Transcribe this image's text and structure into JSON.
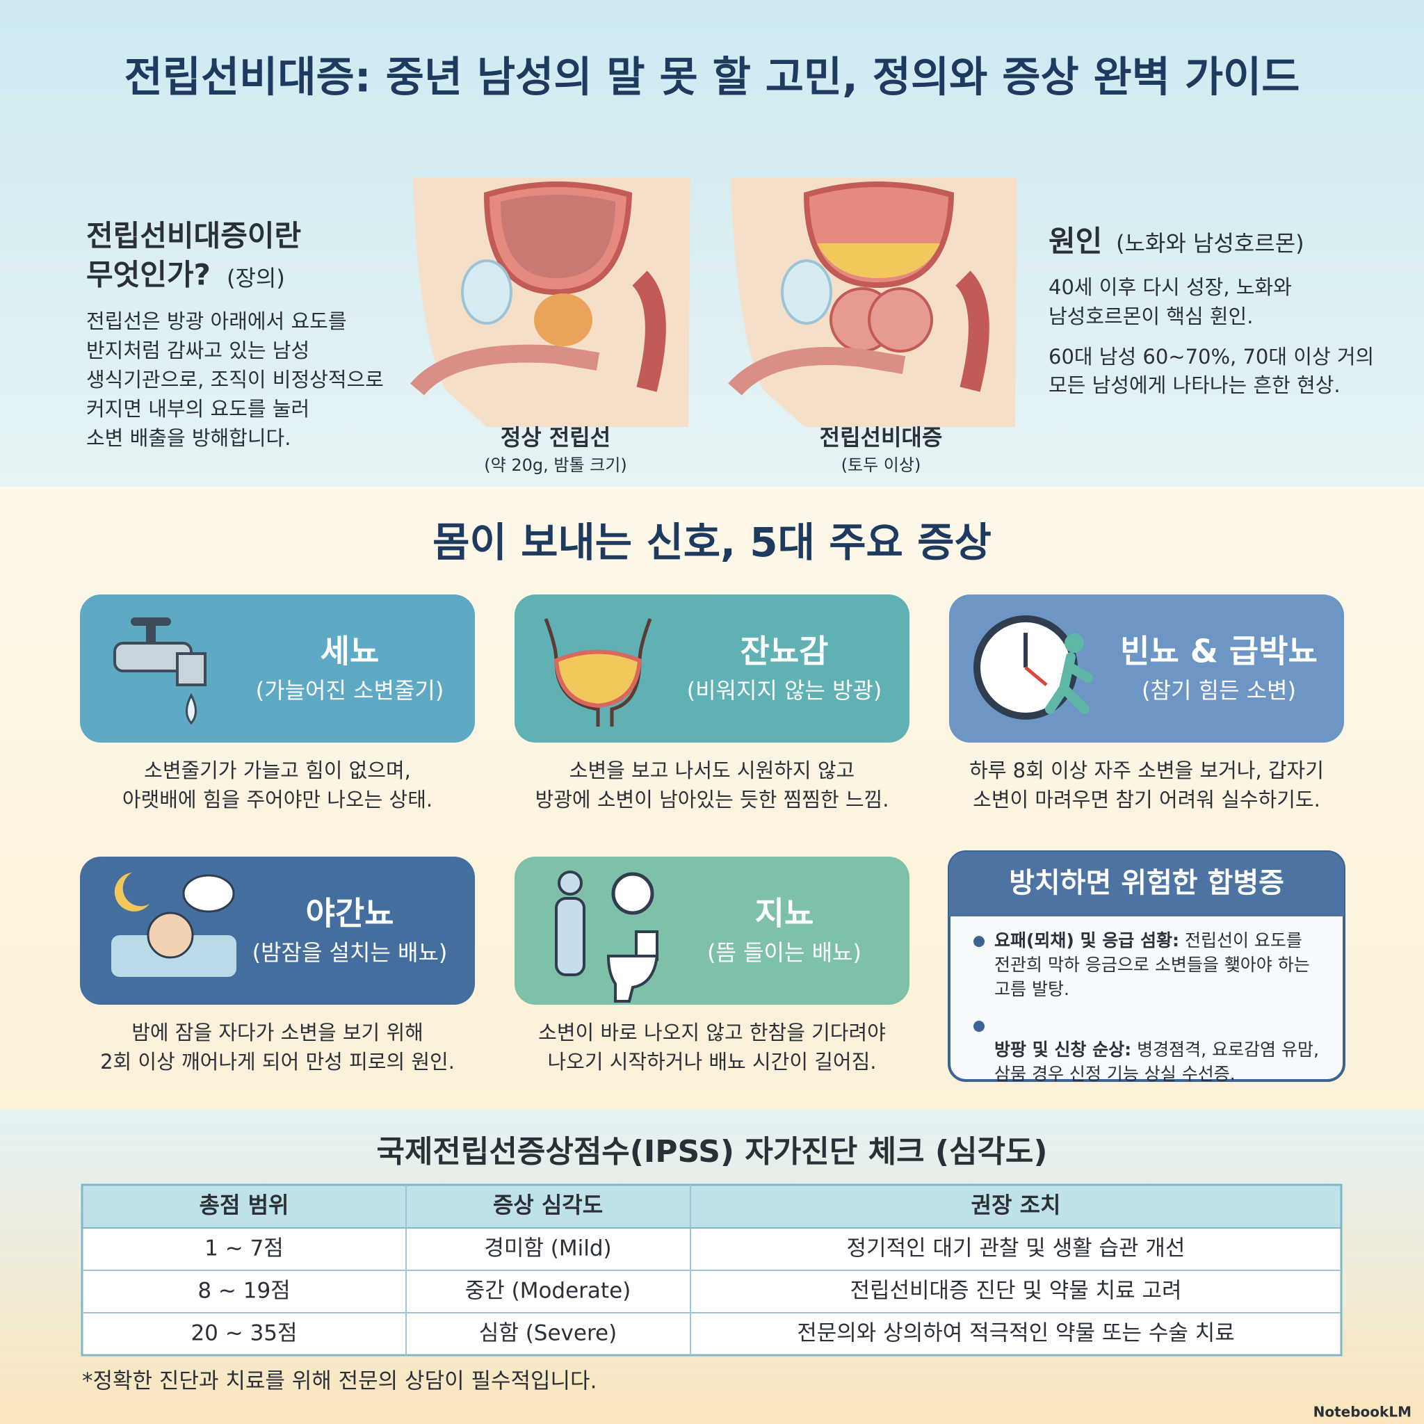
{
  "header": {
    "title": "전립선비대증: 중년 남성의 말 못 할 고민, 정의와 증상 완벽 가이드"
  },
  "definition": {
    "title_lines": [
      "전립선비대증이란",
      "무엇인가?"
    ],
    "tag": "(장의)",
    "body_lines": [
      "전립선은 방광 아래에서 요도를",
      "반지처럼 감싸고 있는 남성",
      "생식기관으로, 조직이 비정상적으로",
      "커지면 내부의 요도를 눌러",
      "소변 배출을 방해합니다."
    ]
  },
  "illustrations": [
    {
      "label": "정상 전립선",
      "sublabel": "(약 20g, 밤톨 크기)"
    },
    {
      "label": "전립선비대증",
      "sublabel": "(토두 이상)"
    }
  ],
  "cause": {
    "title": "원인",
    "subtitle": "(노화와 남성호르몬)",
    "paragraphs": [
      [
        "40세 이후 다시 성장, 노화와",
        "남성호르몬이 핵심 휜인."
      ],
      [
        "60대 남성 60~70%, 70대 이상 거의",
        "모든 남성에게 나타나는 흔한 현상."
      ]
    ]
  },
  "symptoms": {
    "title": "몸이 보내는 신호, 5대 주요 증상",
    "cards": [
      {
        "name": "세뇨",
        "subtitle": "(가늘어진 소변줄기)",
        "description": [
          "소변줄기가 가늘고 힘이 없으며,",
          "아랫배에 힘을 주어야만 나오는 상태."
        ]
      },
      {
        "name": "잔뇨감",
        "subtitle": "(비워지지 않는 방광)",
        "description": [
          "소변을 보고 나서도 시원하지 않고",
          "방광에 소변이 남아있는 듯한 찜찜한 느낌."
        ]
      },
      {
        "name": "빈뇨 & 급박뇨",
        "subtitle": "(참기 힘든 소변)",
        "description": [
          "하루 8회 이상 자주 소변을 보거나, 갑자기",
          "소변이 마려우면 참기 어려워 실수하기도."
        ]
      },
      {
        "name": "야간뇨",
        "subtitle": "(밤잠을 설치는 배뇨)",
        "description": [
          "밤에 잠을 자다가 소변을 보기 위해",
          "2회 이상 깨어나게 되어 만성 피로의 원인."
        ]
      },
      {
        "name": "지뇨",
        "subtitle": "(뜸 들이는 배뇨)",
        "description": [
          "소변이 바로 나오지 않고 한참을 기다려야",
          "나오기 시작하거나 배뇨 시간이 길어짐."
        ]
      }
    ]
  },
  "complications": {
    "title": "방치하면 위험한 합병증",
    "items": [
      {
        "term": "요패(뫼채) 및 응급 섬황:",
        "lines": [
          "전립선이 요도를",
          "전관희 막하 응금으로 소변들을 횇아야 하는",
          "고름 발탕."
        ]
      },
      {
        "term": "방팡 및 신창 순상:",
        "lines": [
          "병경졈격, 요로감염 유맘,",
          "삼뭄 경우 신정 기능 상실 수선증."
        ]
      }
    ]
  },
  "ipss": {
    "title": "국제전립선증상점수(IPSS) 자가진단 체크 (심각도)",
    "headers": [
      "총점 범위",
      "증상 심각도",
      "권장 조치"
    ],
    "rows": [
      [
        "1 ~ 7점",
        "경미함 (Mild)",
        "정기적인 대기 관찰 및 생활 습관 개선"
      ],
      [
        "8 ~ 19점",
        "중간 (Moderate)",
        "전립선비대증 진단 및 약물 치료 고려"
      ],
      [
        "20 ~ 35점",
        "심함 (Severe)",
        "전문의와 상의하여 적극적인 약물 또는 수술 치료"
      ]
    ],
    "footnote": "*정확한 진단과 치료를 위해 전문의 상담이 필수적입니다."
  },
  "brand": "NotebookLM"
}
